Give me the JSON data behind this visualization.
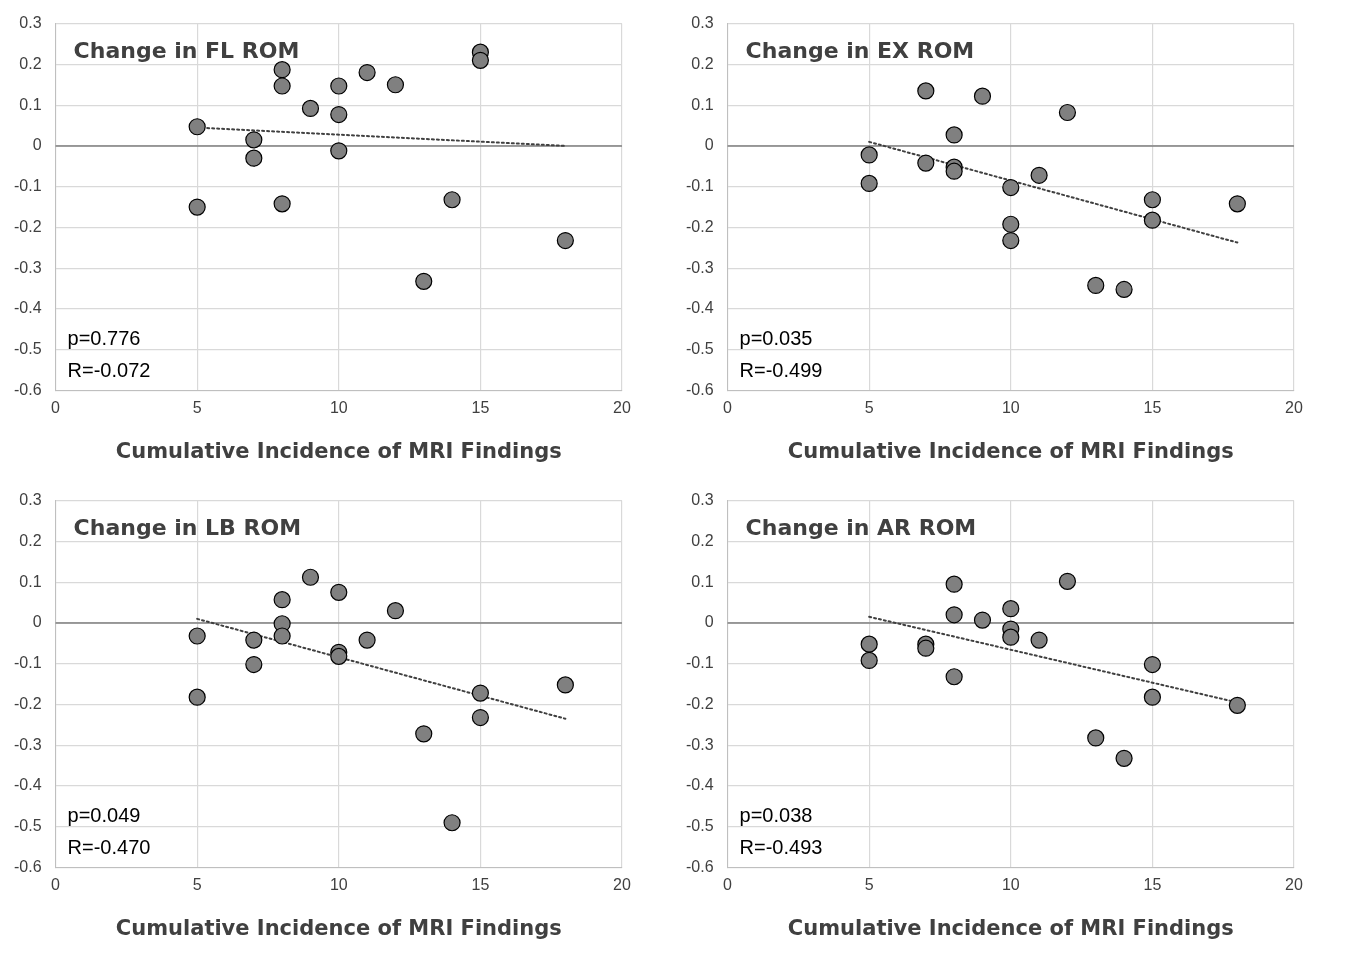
{
  "chart_data": [
    {
      "type": "scatter",
      "xlabel": "Cumulative Incidence of MRI Findings",
      "annotations": [
        "Change in FL ROM",
        "p=0.776",
        "R=-0.072"
      ],
      "xlim": [
        0,
        20
      ],
      "xticks": [
        0,
        5,
        10,
        15,
        20
      ],
      "ylim": [
        -0.6,
        0.3
      ],
      "yticks": [
        -0.6,
        -0.5,
        -0.4,
        -0.3,
        -0.2,
        -0.1,
        0,
        0.1,
        0.2,
        0.3
      ],
      "grid": true,
      "legend": false,
      "marker": "circle",
      "ref_lines": [
        {
          "axis": "y",
          "value": 0,
          "color": "#7f7f7f"
        }
      ],
      "series": [
        {
          "type": "scatter",
          "color": "#808080",
          "x": [
            5,
            5,
            7,
            7,
            8,
            8,
            8,
            9,
            10,
            10,
            10,
            11,
            12,
            13,
            14,
            15,
            15,
            18
          ],
          "values": [
            0.047,
            -0.15,
            0.015,
            -0.03,
            0.187,
            0.147,
            -0.142,
            0.092,
            0.147,
            0.077,
            -0.012,
            0.18,
            0.15,
            -0.332,
            -0.132,
            0.23,
            0.21,
            -0.232
          ]
        },
        {
          "type": "line",
          "color": "#404040",
          "line_style": "dotted",
          "marker": "none",
          "x": [
            5,
            18
          ],
          "values": [
            0.045,
            0.0
          ]
        }
      ]
    },
    {
      "type": "scatter",
      "xlabel": "Cumulative Incidence of MRI Findings",
      "annotations": [
        "Change in EX ROM",
        "p=0.035",
        "R=-0.499"
      ],
      "xlim": [
        0,
        20
      ],
      "xticks": [
        0,
        5,
        10,
        15,
        20
      ],
      "ylim": [
        -0.6,
        0.3
      ],
      "yticks": [
        -0.6,
        -0.5,
        -0.4,
        -0.3,
        -0.2,
        -0.1,
        0,
        0.1,
        0.2,
        0.3
      ],
      "grid": true,
      "legend": false,
      "marker": "circle",
      "ref_lines": [
        {
          "axis": "y",
          "value": 0,
          "color": "#7f7f7f"
        }
      ],
      "series": [
        {
          "type": "scatter",
          "color": "#808080",
          "x": [
            5,
            5,
            7,
            7,
            8,
            8,
            8,
            9,
            10,
            10,
            10,
            11,
            12,
            13,
            14,
            15,
            15,
            18
          ],
          "values": [
            -0.022,
            -0.092,
            0.135,
            -0.042,
            0.027,
            -0.052,
            -0.062,
            0.122,
            -0.102,
            -0.192,
            -0.232,
            -0.072,
            0.082,
            -0.342,
            -0.352,
            -0.132,
            -0.182,
            -0.142
          ]
        },
        {
          "type": "line",
          "color": "#404040",
          "line_style": "dotted",
          "marker": "none",
          "x": [
            5,
            18
          ],
          "values": [
            0.01,
            -0.237
          ]
        }
      ]
    },
    {
      "type": "scatter",
      "xlabel": "Cumulative Incidence of MRI Findings",
      "annotations": [
        "Change in LB ROM",
        "p=0.049",
        "R=-0.470"
      ],
      "xlim": [
        0,
        20
      ],
      "xticks": [
        0,
        5,
        10,
        15,
        20
      ],
      "ylim": [
        -0.6,
        0.3
      ],
      "yticks": [
        -0.6,
        -0.5,
        -0.4,
        -0.3,
        -0.2,
        -0.1,
        0,
        0.1,
        0.2,
        0.3
      ],
      "grid": true,
      "legend": false,
      "marker": "circle",
      "ref_lines": [
        {
          "axis": "y",
          "value": 0,
          "color": "#7f7f7f"
        }
      ],
      "series": [
        {
          "type": "scatter",
          "color": "#808080",
          "x": [
            5,
            5,
            7,
            7,
            8,
            8,
            8,
            9,
            10,
            10,
            10,
            11,
            12,
            13,
            14,
            15,
            15,
            18
          ],
          "values": [
            -0.032,
            -0.182,
            -0.042,
            -0.102,
            0.057,
            -0.002,
            -0.032,
            0.112,
            0.075,
            -0.072,
            -0.082,
            -0.042,
            0.03,
            -0.272,
            -0.49,
            -0.172,
            -0.232,
            -0.152
          ]
        },
        {
          "type": "line",
          "color": "#404040",
          "line_style": "dotted",
          "marker": "none",
          "x": [
            5,
            18
          ],
          "values": [
            0.01,
            -0.235
          ]
        }
      ]
    },
    {
      "type": "scatter",
      "xlabel": "Cumulative Incidence of MRI Findings",
      "annotations": [
        "Change in AR ROM",
        "p=0.038",
        "R=-0.493"
      ],
      "xlim": [
        0,
        20
      ],
      "xticks": [
        0,
        5,
        10,
        15,
        20
      ],
      "ylim": [
        -0.6,
        0.3
      ],
      "yticks": [
        -0.6,
        -0.5,
        -0.4,
        -0.3,
        -0.2,
        -0.1,
        0,
        0.1,
        0.2,
        0.3
      ],
      "grid": true,
      "legend": false,
      "marker": "circle",
      "ref_lines": [
        {
          "axis": "y",
          "value": 0,
          "color": "#7f7f7f"
        }
      ],
      "series": [
        {
          "type": "scatter",
          "color": "#808080",
          "x": [
            5,
            5,
            7,
            7,
            8,
            8,
            8,
            9,
            10,
            10,
            10,
            11,
            12,
            13,
            14,
            15,
            15,
            18
          ],
          "values": [
            -0.052,
            -0.092,
            -0.052,
            -0.062,
            0.095,
            0.02,
            -0.132,
            0.007,
            0.035,
            -0.015,
            -0.035,
            -0.042,
            0.102,
            -0.282,
            -0.332,
            -0.102,
            -0.182,
            -0.202
          ]
        },
        {
          "type": "line",
          "color": "#404040",
          "line_style": "dotted",
          "marker": "none",
          "x": [
            5,
            18
          ],
          "values": [
            0.015,
            -0.195
          ]
        }
      ]
    }
  ]
}
